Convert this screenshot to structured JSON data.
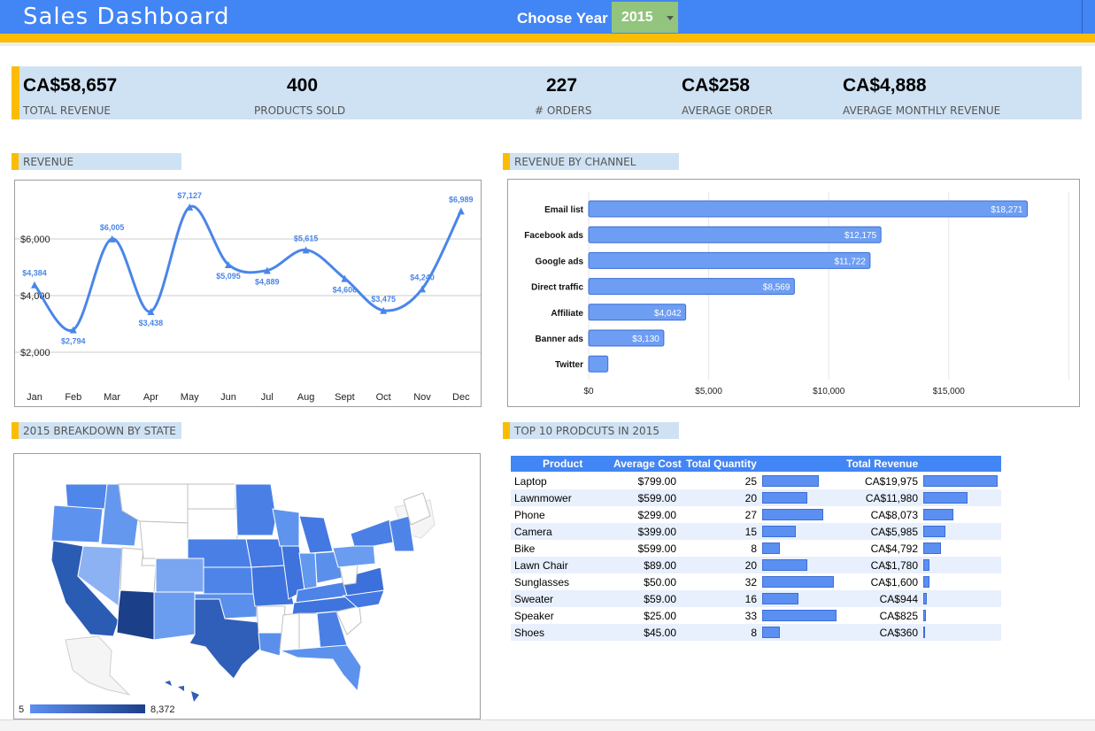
{
  "header": {
    "title": "Sales Dashboard",
    "year_label": "Choose Year",
    "year_value": "2015"
  },
  "kpis": [
    {
      "value": "CA$58,657",
      "label": "TOTAL REVENUE"
    },
    {
      "value": "400",
      "label": "PRODUCTS SOLD"
    },
    {
      "value": "227",
      "label": "# ORDERS"
    },
    {
      "value": "CA$258",
      "label": "AVERAGE ORDER"
    },
    {
      "value": "CA$4,888",
      "label": "AVERAGE MONTHLY REVENUE"
    }
  ],
  "sections": {
    "revenue": "REVENUE",
    "channel": "REVENUE BY CHANNEL",
    "state": "2015 BREAKDOWN BY STATE",
    "top10": "TOP 10 PRODCUTS IN 2015"
  },
  "colors": {
    "header": "#4285f4",
    "accent": "#fbbc04",
    "band": "#cfe2f3",
    "line": "#4a86e8",
    "bar": "#5b8ff2",
    "year_select": "#93c47d"
  },
  "chart_data": [
    {
      "type": "line",
      "categories": [
        "Jan",
        "Feb",
        "Mar",
        "Apr",
        "May",
        "Jun",
        "Jul",
        "Aug",
        "Sept",
        "Oct",
        "Nov",
        "Dec"
      ],
      "values": [
        4384,
        2794,
        6005,
        3438,
        7127,
        5095,
        4889,
        5615,
        4606,
        3475,
        4240,
        6989
      ],
      "labels": [
        "$4,384",
        "$2,794",
        "$6,005",
        "$3,438",
        "$7,127",
        "$5,095",
        "$4,889",
        "$5,615",
        "$4,606",
        "$3,475",
        "$4,240",
        "$6,989"
      ],
      "yticks": [
        "$2,000",
        "$4,000",
        "$6,000"
      ],
      "ytick_values": [
        2000,
        4000,
        6000
      ],
      "ylim": [
        1000,
        8000
      ],
      "grid": true
    },
    {
      "type": "bar",
      "orientation": "horizontal",
      "categories": [
        "Email list",
        "Facebook ads",
        "Google ads",
        "Direct traffic",
        "Affiliate",
        "Banner ads",
        "Twitter"
      ],
      "values": [
        18271,
        12175,
        11722,
        8569,
        4042,
        3130,
        800
      ],
      "labels": [
        "$18,271",
        "$12,175",
        "$11,722",
        "$8,569",
        "$4,042",
        "$3,130",
        ""
      ],
      "xticks": [
        "$0",
        "$5,000",
        "$10,000",
        "$15,000"
      ],
      "xtick_values": [
        0,
        5000,
        10000,
        15000
      ],
      "xlim": [
        0,
        20000
      ],
      "grid": true
    }
  ],
  "map": {
    "legend_min": "5",
    "legend_max": "8,372"
  },
  "table": {
    "headers": [
      "Product",
      "Average Cost",
      "Total Quantity",
      "Total Revenue"
    ],
    "qty_max": 33,
    "rev_max": 19975,
    "rows": [
      {
        "product": "Laptop",
        "cost": "$799.00",
        "qty": 25,
        "revenue": "CA$19,975",
        "rev_value": 19975
      },
      {
        "product": "Lawnmower",
        "cost": "$599.00",
        "qty": 20,
        "revenue": "CA$11,980",
        "rev_value": 11980
      },
      {
        "product": "Phone",
        "cost": "$299.00",
        "qty": 27,
        "revenue": "CA$8,073",
        "rev_value": 8073
      },
      {
        "product": "Camera",
        "cost": "$399.00",
        "qty": 15,
        "revenue": "CA$5,985",
        "rev_value": 5985
      },
      {
        "product": "Bike",
        "cost": "$599.00",
        "qty": 8,
        "revenue": "CA$4,792",
        "rev_value": 4792
      },
      {
        "product": "Lawn Chair",
        "cost": "$89.00",
        "qty": 20,
        "revenue": "CA$1,780",
        "rev_value": 1780
      },
      {
        "product": "Sunglasses",
        "cost": "$50.00",
        "qty": 32,
        "revenue": "CA$1,600",
        "rev_value": 1600
      },
      {
        "product": "Sweater",
        "cost": "$59.00",
        "qty": 16,
        "revenue": "CA$944",
        "rev_value": 944
      },
      {
        "product": "Speaker",
        "cost": "$25.00",
        "qty": 33,
        "revenue": "CA$825",
        "rev_value": 825
      },
      {
        "product": "Shoes",
        "cost": "$45.00",
        "qty": 8,
        "revenue": "CA$360",
        "rev_value": 360
      }
    ]
  }
}
